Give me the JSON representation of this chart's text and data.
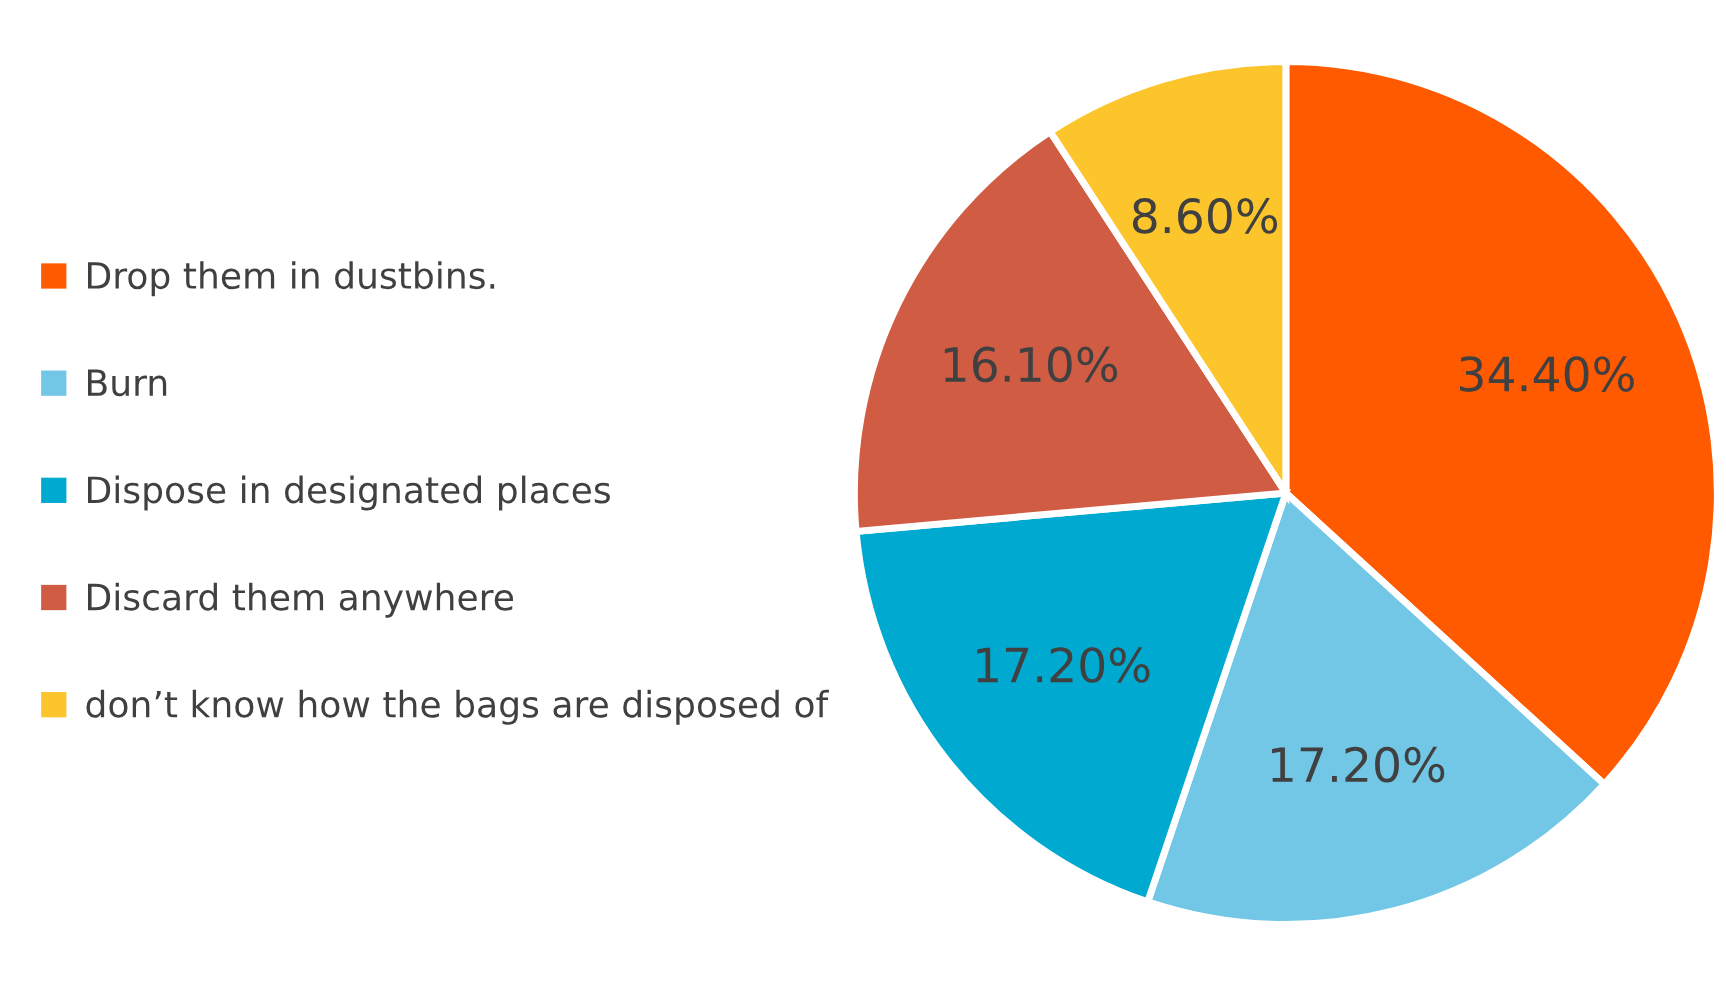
{
  "chart_data": {
    "type": "pie",
    "categories": [
      "Drop them in dustbins.",
      "Burn",
      "Dispose in designated places",
      "Discard them anywhere",
      "don’t know how the bags are disposed of"
    ],
    "values": [
      34.4,
      17.2,
      17.2,
      16.1,
      8.6
    ],
    "colors": [
      "#ff5a00",
      "#72c6e6",
      "#00a9d0",
      "#d05c44",
      "#fdc52c"
    ],
    "value_labels": [
      "34.40%",
      "17.20%",
      "17.20%",
      "16.10%",
      "8.60%"
    ],
    "legend": "left"
  }
}
